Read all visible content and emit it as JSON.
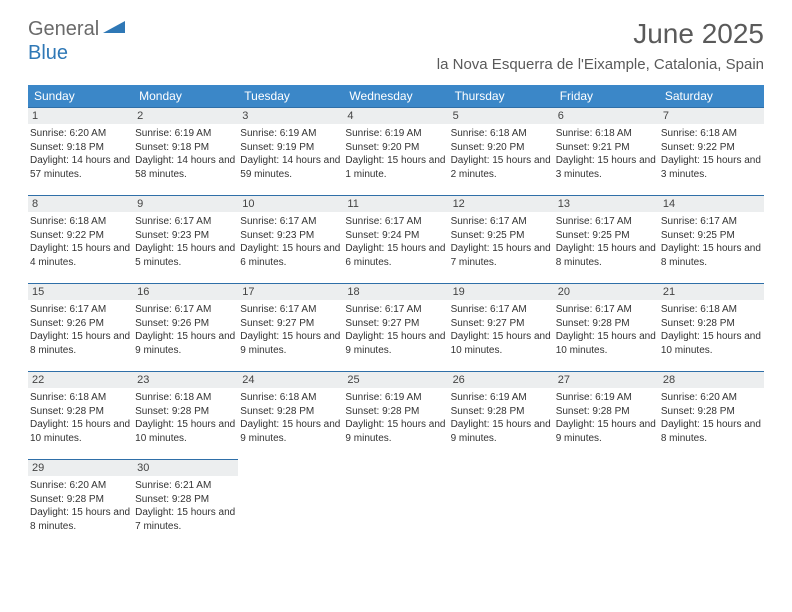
{
  "logo": {
    "part1": "General",
    "part2": "Blue"
  },
  "title": "June 2025",
  "location": "la Nova Esquerra de l'Eixample, Catalonia, Spain",
  "colors": {
    "header_bg": "#3b87c8",
    "header_text": "#ffffff",
    "daynum_bg": "#eceeef",
    "daynum_border": "#2f6fa8",
    "logo_gray": "#6a6a6a",
    "logo_blue": "#2f78b6",
    "text": "#333333"
  },
  "day_headers": [
    "Sunday",
    "Monday",
    "Tuesday",
    "Wednesday",
    "Thursday",
    "Friday",
    "Saturday"
  ],
  "weeks": [
    [
      {
        "n": "1",
        "sr": "Sunrise: 6:20 AM",
        "ss": "Sunset: 9:18 PM",
        "dl": "Daylight: 14 hours and 57 minutes."
      },
      {
        "n": "2",
        "sr": "Sunrise: 6:19 AM",
        "ss": "Sunset: 9:18 PM",
        "dl": "Daylight: 14 hours and 58 minutes."
      },
      {
        "n": "3",
        "sr": "Sunrise: 6:19 AM",
        "ss": "Sunset: 9:19 PM",
        "dl": "Daylight: 14 hours and 59 minutes."
      },
      {
        "n": "4",
        "sr": "Sunrise: 6:19 AM",
        "ss": "Sunset: 9:20 PM",
        "dl": "Daylight: 15 hours and 1 minute."
      },
      {
        "n": "5",
        "sr": "Sunrise: 6:18 AM",
        "ss": "Sunset: 9:20 PM",
        "dl": "Daylight: 15 hours and 2 minutes."
      },
      {
        "n": "6",
        "sr": "Sunrise: 6:18 AM",
        "ss": "Sunset: 9:21 PM",
        "dl": "Daylight: 15 hours and 3 minutes."
      },
      {
        "n": "7",
        "sr": "Sunrise: 6:18 AM",
        "ss": "Sunset: 9:22 PM",
        "dl": "Daylight: 15 hours and 3 minutes."
      }
    ],
    [
      {
        "n": "8",
        "sr": "Sunrise: 6:18 AM",
        "ss": "Sunset: 9:22 PM",
        "dl": "Daylight: 15 hours and 4 minutes."
      },
      {
        "n": "9",
        "sr": "Sunrise: 6:17 AM",
        "ss": "Sunset: 9:23 PM",
        "dl": "Daylight: 15 hours and 5 minutes."
      },
      {
        "n": "10",
        "sr": "Sunrise: 6:17 AM",
        "ss": "Sunset: 9:23 PM",
        "dl": "Daylight: 15 hours and 6 minutes."
      },
      {
        "n": "11",
        "sr": "Sunrise: 6:17 AM",
        "ss": "Sunset: 9:24 PM",
        "dl": "Daylight: 15 hours and 6 minutes."
      },
      {
        "n": "12",
        "sr": "Sunrise: 6:17 AM",
        "ss": "Sunset: 9:25 PM",
        "dl": "Daylight: 15 hours and 7 minutes."
      },
      {
        "n": "13",
        "sr": "Sunrise: 6:17 AM",
        "ss": "Sunset: 9:25 PM",
        "dl": "Daylight: 15 hours and 8 minutes."
      },
      {
        "n": "14",
        "sr": "Sunrise: 6:17 AM",
        "ss": "Sunset: 9:25 PM",
        "dl": "Daylight: 15 hours and 8 minutes."
      }
    ],
    [
      {
        "n": "15",
        "sr": "Sunrise: 6:17 AM",
        "ss": "Sunset: 9:26 PM",
        "dl": "Daylight: 15 hours and 8 minutes."
      },
      {
        "n": "16",
        "sr": "Sunrise: 6:17 AM",
        "ss": "Sunset: 9:26 PM",
        "dl": "Daylight: 15 hours and 9 minutes."
      },
      {
        "n": "17",
        "sr": "Sunrise: 6:17 AM",
        "ss": "Sunset: 9:27 PM",
        "dl": "Daylight: 15 hours and 9 minutes."
      },
      {
        "n": "18",
        "sr": "Sunrise: 6:17 AM",
        "ss": "Sunset: 9:27 PM",
        "dl": "Daylight: 15 hours and 9 minutes."
      },
      {
        "n": "19",
        "sr": "Sunrise: 6:17 AM",
        "ss": "Sunset: 9:27 PM",
        "dl": "Daylight: 15 hours and 10 minutes."
      },
      {
        "n": "20",
        "sr": "Sunrise: 6:17 AM",
        "ss": "Sunset: 9:28 PM",
        "dl": "Daylight: 15 hours and 10 minutes."
      },
      {
        "n": "21",
        "sr": "Sunrise: 6:18 AM",
        "ss": "Sunset: 9:28 PM",
        "dl": "Daylight: 15 hours and 10 minutes."
      }
    ],
    [
      {
        "n": "22",
        "sr": "Sunrise: 6:18 AM",
        "ss": "Sunset: 9:28 PM",
        "dl": "Daylight: 15 hours and 10 minutes."
      },
      {
        "n": "23",
        "sr": "Sunrise: 6:18 AM",
        "ss": "Sunset: 9:28 PM",
        "dl": "Daylight: 15 hours and 10 minutes."
      },
      {
        "n": "24",
        "sr": "Sunrise: 6:18 AM",
        "ss": "Sunset: 9:28 PM",
        "dl": "Daylight: 15 hours and 9 minutes."
      },
      {
        "n": "25",
        "sr": "Sunrise: 6:19 AM",
        "ss": "Sunset: 9:28 PM",
        "dl": "Daylight: 15 hours and 9 minutes."
      },
      {
        "n": "26",
        "sr": "Sunrise: 6:19 AM",
        "ss": "Sunset: 9:28 PM",
        "dl": "Daylight: 15 hours and 9 minutes."
      },
      {
        "n": "27",
        "sr": "Sunrise: 6:19 AM",
        "ss": "Sunset: 9:28 PM",
        "dl": "Daylight: 15 hours and 9 minutes."
      },
      {
        "n": "28",
        "sr": "Sunrise: 6:20 AM",
        "ss": "Sunset: 9:28 PM",
        "dl": "Daylight: 15 hours and 8 minutes."
      }
    ],
    [
      {
        "n": "29",
        "sr": "Sunrise: 6:20 AM",
        "ss": "Sunset: 9:28 PM",
        "dl": "Daylight: 15 hours and 8 minutes."
      },
      {
        "n": "30",
        "sr": "Sunrise: 6:21 AM",
        "ss": "Sunset: 9:28 PM",
        "dl": "Daylight: 15 hours and 7 minutes."
      },
      null,
      null,
      null,
      null,
      null
    ]
  ]
}
